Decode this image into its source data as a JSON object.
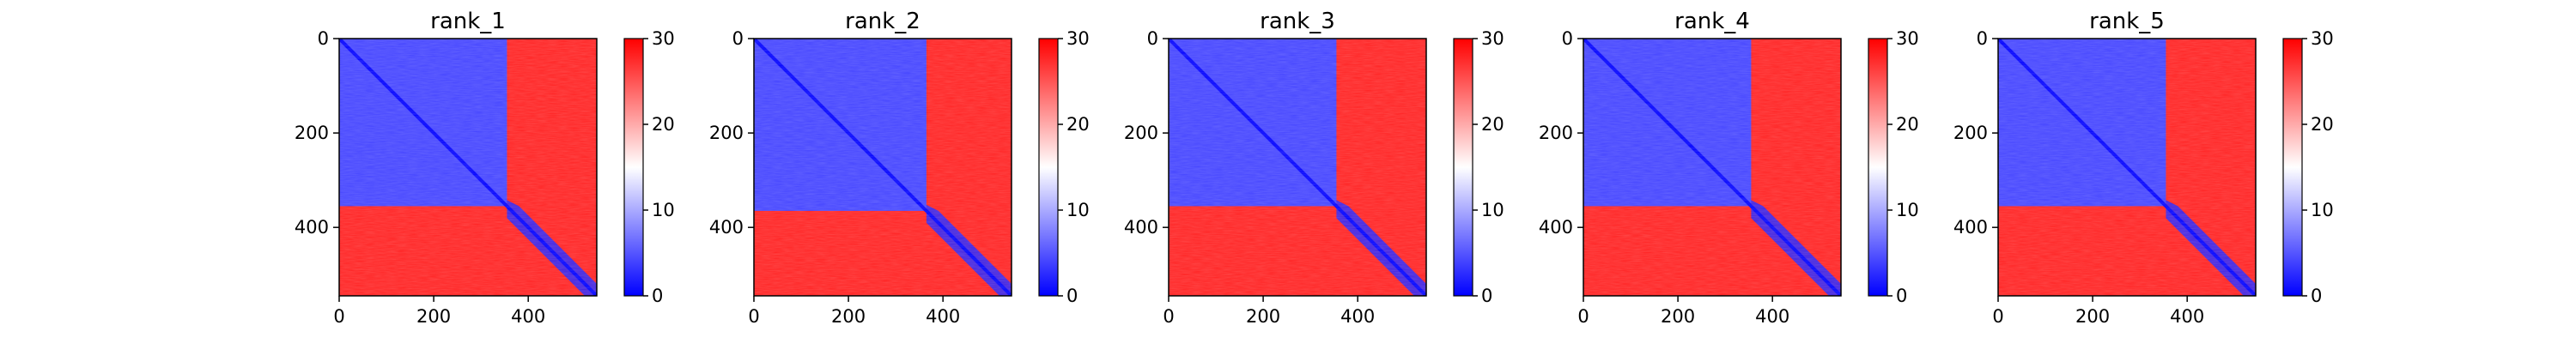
{
  "chart_data": [
    {
      "type": "heatmap",
      "title": "rank_1",
      "x_ticks": [
        0,
        200,
        400
      ],
      "y_ticks": [
        0,
        200,
        400
      ],
      "xlim": [
        0,
        545
      ],
      "ylim": [
        545,
        0
      ],
      "colorbar": {
        "ticks": [
          0,
          10,
          20,
          30
        ],
        "range": [
          0,
          30
        ]
      },
      "domains": [
        {
          "start": 0,
          "end": 355,
          "interior_value": 4
        },
        {
          "start": 355,
          "end": 545,
          "interior_value": 28,
          "diagonal_band_value": 2
        }
      ]
    },
    {
      "type": "heatmap",
      "title": "rank_2",
      "x_ticks": [
        0,
        200,
        400
      ],
      "y_ticks": [
        0,
        200,
        400
      ],
      "xlim": [
        0,
        545
      ],
      "ylim": [
        545,
        0
      ],
      "colorbar": {
        "ticks": [
          0,
          10,
          20,
          30
        ],
        "range": [
          0,
          30
        ]
      },
      "domains": [
        {
          "start": 0,
          "end": 365,
          "interior_value": 4
        },
        {
          "start": 365,
          "end": 545,
          "interior_value": 28,
          "diagonal_band_value": 2
        }
      ]
    },
    {
      "type": "heatmap",
      "title": "rank_3",
      "x_ticks": [
        0,
        200,
        400
      ],
      "y_ticks": [
        0,
        200,
        400
      ],
      "xlim": [
        0,
        545
      ],
      "ylim": [
        545,
        0
      ],
      "colorbar": {
        "ticks": [
          0,
          10,
          20,
          30
        ],
        "range": [
          0,
          30
        ]
      },
      "domains": [
        {
          "start": 0,
          "end": 355,
          "interior_value": 4
        },
        {
          "start": 355,
          "end": 545,
          "interior_value": 28,
          "diagonal_band_value": 2
        }
      ]
    },
    {
      "type": "heatmap",
      "title": "rank_4",
      "x_ticks": [
        0,
        200,
        400
      ],
      "y_ticks": [
        0,
        200,
        400
      ],
      "xlim": [
        0,
        545
      ],
      "ylim": [
        545,
        0
      ],
      "colorbar": {
        "ticks": [
          0,
          10,
          20,
          30
        ],
        "range": [
          0,
          30
        ]
      },
      "domains": [
        {
          "start": 0,
          "end": 355,
          "interior_value": 4
        },
        {
          "start": 355,
          "end": 545,
          "interior_value": 28,
          "diagonal_band_value": 2
        }
      ]
    },
    {
      "type": "heatmap",
      "title": "rank_5",
      "x_ticks": [
        0,
        200,
        400
      ],
      "y_ticks": [
        0,
        200,
        400
      ],
      "xlim": [
        0,
        545
      ],
      "ylim": [
        545,
        0
      ],
      "colorbar": {
        "ticks": [
          0,
          10,
          20,
          30
        ],
        "range": [
          0,
          30
        ]
      },
      "domains": [
        {
          "start": 0,
          "end": 355,
          "interior_value": 4
        },
        {
          "start": 355,
          "end": 545,
          "interior_value": 28,
          "diagonal_band_value": 2
        }
      ]
    }
  ]
}
